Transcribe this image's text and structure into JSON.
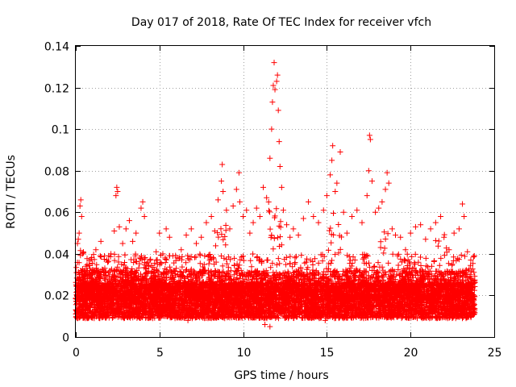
{
  "chart_data": {
    "type": "scatter",
    "title": "Day 017 of 2018, Rate Of TEC Index for receiver vfch",
    "xlabel": "GPS time / hours",
    "ylabel": "ROTI / TECUs",
    "xlim": [
      0,
      25
    ],
    "ylim": [
      0,
      0.14
    ],
    "xticks": [
      0,
      5,
      10,
      15,
      20,
      25
    ],
    "xtick_labels": [
      "0",
      "5",
      "10",
      "15",
      "20",
      "25"
    ],
    "yticks": [
      0,
      0.02,
      0.04,
      0.06,
      0.08,
      0.1,
      0.12,
      0.14
    ],
    "ytick_labels": [
      "0",
      "0.02",
      "0.04",
      "0.06",
      "0.08",
      "0.1",
      "0.12",
      "0.14"
    ],
    "grid": true,
    "marker": "+",
    "color": "#ff0000",
    "series": [
      {
        "name": "ROTI",
        "points": [
          [
            0.05,
            0.017
          ],
          [
            0.1,
            0.045
          ],
          [
            0.15,
            0.047
          ],
          [
            0.2,
            0.05
          ],
          [
            0.25,
            0.063
          ],
          [
            0.3,
            0.066
          ],
          [
            0.35,
            0.058
          ],
          [
            0.4,
            0.04
          ],
          [
            0.3,
            0.032
          ],
          [
            0.2,
            0.028
          ],
          [
            0.5,
            0.022
          ],
          [
            0.6,
            0.03
          ],
          [
            0.8,
            0.035
          ],
          [
            1.0,
            0.03
          ],
          [
            1.2,
            0.042
          ],
          [
            1.4,
            0.031
          ],
          [
            1.5,
            0.046
          ],
          [
            1.7,
            0.028
          ],
          [
            1.9,
            0.036
          ],
          [
            2.1,
            0.04
          ],
          [
            2.3,
            0.051
          ],
          [
            2.4,
            0.068
          ],
          [
            2.45,
            0.072
          ],
          [
            2.5,
            0.07
          ],
          [
            2.6,
            0.053
          ],
          [
            2.8,
            0.045
          ],
          [
            3.0,
            0.052
          ],
          [
            3.2,
            0.056
          ],
          [
            3.4,
            0.046
          ],
          [
            3.6,
            0.05
          ],
          [
            3.8,
            0.038
          ],
          [
            3.9,
            0.062
          ],
          [
            4.0,
            0.065
          ],
          [
            4.1,
            0.058
          ],
          [
            4.3,
            0.036
          ],
          [
            4.5,
            0.028
          ],
          [
            4.8,
            0.041
          ],
          [
            5.0,
            0.05
          ],
          [
            5.2,
            0.04
          ],
          [
            5.4,
            0.052
          ],
          [
            5.6,
            0.048
          ],
          [
            5.8,
            0.039
          ],
          [
            6.0,
            0.033
          ],
          [
            6.3,
            0.042
          ],
          [
            6.6,
            0.049
          ],
          [
            6.9,
            0.052
          ],
          [
            7.2,
            0.045
          ],
          [
            7.5,
            0.048
          ],
          [
            7.8,
            0.055
          ],
          [
            8.1,
            0.058
          ],
          [
            8.3,
            0.051
          ],
          [
            8.5,
            0.066
          ],
          [
            8.7,
            0.075
          ],
          [
            8.75,
            0.083
          ],
          [
            8.8,
            0.07
          ],
          [
            9.0,
            0.061
          ],
          [
            9.2,
            0.052
          ],
          [
            9.4,
            0.063
          ],
          [
            9.6,
            0.071
          ],
          [
            9.75,
            0.079
          ],
          [
            9.8,
            0.065
          ],
          [
            10.0,
            0.058
          ],
          [
            10.2,
            0.061
          ],
          [
            10.4,
            0.05
          ],
          [
            10.6,
            0.055
          ],
          [
            10.8,
            0.062
          ],
          [
            11.0,
            0.058
          ],
          [
            11.2,
            0.072
          ],
          [
            11.4,
            0.067
          ],
          [
            11.6,
            0.086
          ],
          [
            11.7,
            0.1
          ],
          [
            11.75,
            0.113
          ],
          [
            11.8,
            0.121
          ],
          [
            11.85,
            0.132
          ],
          [
            11.9,
            0.119
          ],
          [
            12.0,
            0.123
          ],
          [
            12.05,
            0.126
          ],
          [
            12.1,
            0.109
          ],
          [
            12.15,
            0.094
          ],
          [
            12.2,
            0.082
          ],
          [
            12.3,
            0.072
          ],
          [
            12.4,
            0.061
          ],
          [
            12.6,
            0.054
          ],
          [
            12.8,
            0.048
          ],
          [
            13.0,
            0.052
          ],
          [
            13.3,
            0.049
          ],
          [
            13.6,
            0.057
          ],
          [
            13.9,
            0.065
          ],
          [
            14.2,
            0.058
          ],
          [
            14.5,
            0.055
          ],
          [
            14.8,
            0.061
          ],
          [
            15.0,
            0.068
          ],
          [
            15.2,
            0.078
          ],
          [
            15.3,
            0.085
          ],
          [
            15.35,
            0.092
          ],
          [
            15.5,
            0.07
          ],
          [
            15.6,
            0.074
          ],
          [
            15.8,
            0.089
          ],
          [
            16.0,
            0.06
          ],
          [
            16.2,
            0.05
          ],
          [
            16.5,
            0.058
          ],
          [
            16.8,
            0.061
          ],
          [
            17.1,
            0.055
          ],
          [
            17.4,
            0.068
          ],
          [
            17.5,
            0.08
          ],
          [
            17.55,
            0.097
          ],
          [
            17.6,
            0.095
          ],
          [
            17.7,
            0.075
          ],
          [
            17.9,
            0.06
          ],
          [
            18.1,
            0.062
          ],
          [
            18.3,
            0.065
          ],
          [
            18.5,
            0.071
          ],
          [
            18.6,
            0.079
          ],
          [
            18.7,
            0.074
          ],
          [
            18.9,
            0.052
          ],
          [
            19.1,
            0.049
          ],
          [
            19.4,
            0.048
          ],
          [
            19.7,
            0.042
          ],
          [
            20.0,
            0.05
          ],
          [
            20.3,
            0.053
          ],
          [
            20.6,
            0.054
          ],
          [
            20.9,
            0.047
          ],
          [
            21.2,
            0.052
          ],
          [
            21.5,
            0.055
          ],
          [
            21.8,
            0.058
          ],
          [
            22.0,
            0.048
          ],
          [
            22.3,
            0.042
          ],
          [
            22.6,
            0.05
          ],
          [
            22.9,
            0.052
          ],
          [
            23.1,
            0.064
          ],
          [
            23.2,
            0.058
          ],
          [
            23.4,
            0.041
          ],
          [
            23.6,
            0.037
          ],
          [
            23.8,
            0.039
          ],
          [
            0.4,
            0.012
          ],
          [
            1.1,
            0.009
          ],
          [
            2.2,
            0.011
          ],
          [
            3.5,
            0.01
          ],
          [
            4.6,
            0.009
          ],
          [
            5.5,
            0.01
          ],
          [
            6.7,
            0.008
          ],
          [
            7.7,
            0.011
          ],
          [
            8.9,
            0.009
          ],
          [
            9.9,
            0.01
          ],
          [
            11.3,
            0.006
          ],
          [
            11.6,
            0.005
          ],
          [
            12.7,
            0.009
          ],
          [
            13.8,
            0.01
          ],
          [
            14.9,
            0.008
          ],
          [
            16.1,
            0.01
          ],
          [
            17.2,
            0.009
          ],
          [
            18.2,
            0.01
          ],
          [
            19.3,
            0.011
          ],
          [
            20.4,
            0.009
          ],
          [
            21.6,
            0.01
          ],
          [
            22.7,
            0.009
          ],
          [
            23.7,
            0.012
          ]
        ]
      }
    ]
  }
}
